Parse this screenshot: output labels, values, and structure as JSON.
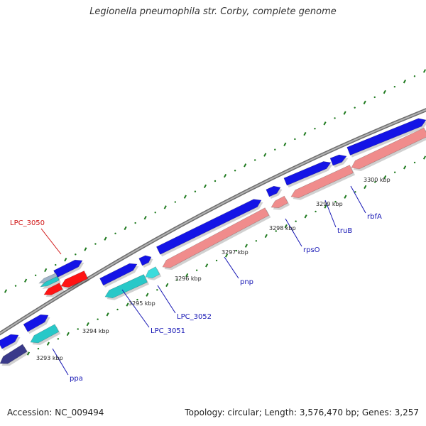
{
  "title": "Legionella pneumophila str. Corby, complete genome",
  "footer": {
    "accession": "Accession: NC_009494",
    "summary": "Topology: circular; Length: 3,576,470 bp; Genes: 3,257"
  },
  "colors": {
    "backbone": "#8c8c8c",
    "tick": "#1e7a1e",
    "forward_gene": "#1414e6",
    "reverse_gene": "#f08c8c",
    "rna_gene": "#ff1414",
    "cyan_gene": "#28c8c8",
    "dark_gene": "#3a3a8a",
    "label": "#1414b4",
    "highlight_label": "#d01414"
  },
  "scale_labels": [
    "3293 kbp",
    "3294 kbp",
    "3295 kbp",
    "3296 kbp",
    "3297 kbp",
    "3298 kbp",
    "3299 kbp",
    "3300 kbp"
  ],
  "gene_labels": [
    {
      "text": "LPC_3050",
      "highlight": true
    },
    {
      "text": "ppa",
      "highlight": false
    },
    {
      "text": "LPC_3051",
      "highlight": false
    },
    {
      "text": "LPC_3052",
      "highlight": false
    },
    {
      "text": "pnp",
      "highlight": false
    },
    {
      "text": "rpsO",
      "highlight": false
    },
    {
      "text": "truB",
      "highlight": false
    },
    {
      "text": "rbfA",
      "highlight": false
    }
  ]
}
